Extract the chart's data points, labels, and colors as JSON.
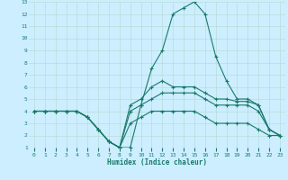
{
  "xlabel": "Humidex (Indice chaleur)",
  "bg_color": "#cceeff",
  "grid_color": "#b8ddd8",
  "line_color": "#1a7a6a",
  "xlim": [
    -0.5,
    23.5
  ],
  "ylim": [
    1,
    13
  ],
  "xticks": [
    0,
    1,
    2,
    3,
    4,
    5,
    6,
    7,
    8,
    9,
    10,
    11,
    12,
    13,
    14,
    15,
    16,
    17,
    18,
    19,
    20,
    21,
    22,
    23
  ],
  "yticks": [
    1,
    2,
    3,
    4,
    5,
    6,
    7,
    8,
    9,
    10,
    11,
    12,
    13
  ],
  "lines": [
    {
      "x": [
        0,
        1,
        2,
        3,
        4,
        5,
        6,
        7,
        8,
        9,
        10,
        11,
        12,
        13,
        14,
        15,
        16,
        17,
        18,
        19,
        20,
        21,
        22,
        23
      ],
      "y": [
        4,
        4,
        4,
        4,
        4,
        3.5,
        2.5,
        1.5,
        1,
        1,
        4.5,
        7.5,
        9,
        12,
        12.5,
        13,
        12,
        8.5,
        6.5,
        5,
        5,
        4.5,
        2.5,
        2
      ]
    },
    {
      "x": [
        0,
        1,
        2,
        3,
        4,
        5,
        6,
        7,
        8,
        9,
        10,
        11,
        12,
        13,
        14,
        15,
        16,
        17,
        18,
        19,
        20,
        21,
        22,
        23
      ],
      "y": [
        4,
        4,
        4,
        4,
        4,
        3.5,
        2.5,
        1.5,
        1,
        4.5,
        5,
        6,
        6.5,
        6,
        6,
        6,
        5.5,
        5,
        5,
        4.8,
        4.8,
        4.5,
        2.5,
        2
      ]
    },
    {
      "x": [
        0,
        1,
        2,
        3,
        4,
        5,
        6,
        7,
        8,
        9,
        10,
        11,
        12,
        13,
        14,
        15,
        16,
        17,
        18,
        19,
        20,
        21,
        22,
        23
      ],
      "y": [
        4,
        4,
        4,
        4,
        4,
        3.5,
        2.5,
        1.5,
        1,
        4,
        4.5,
        5,
        5.5,
        5.5,
        5.5,
        5.5,
        5,
        4.5,
        4.5,
        4.5,
        4.5,
        4,
        2.5,
        2
      ]
    },
    {
      "x": [
        0,
        1,
        2,
        3,
        4,
        5,
        6,
        7,
        8,
        9,
        10,
        11,
        12,
        13,
        14,
        15,
        16,
        17,
        18,
        19,
        20,
        21,
        22,
        23
      ],
      "y": [
        4,
        4,
        4,
        4,
        4,
        3.5,
        2.5,
        1.5,
        1,
        3,
        3.5,
        4,
        4,
        4,
        4,
        4,
        3.5,
        3,
        3,
        3,
        3,
        2.5,
        2,
        2
      ]
    }
  ]
}
